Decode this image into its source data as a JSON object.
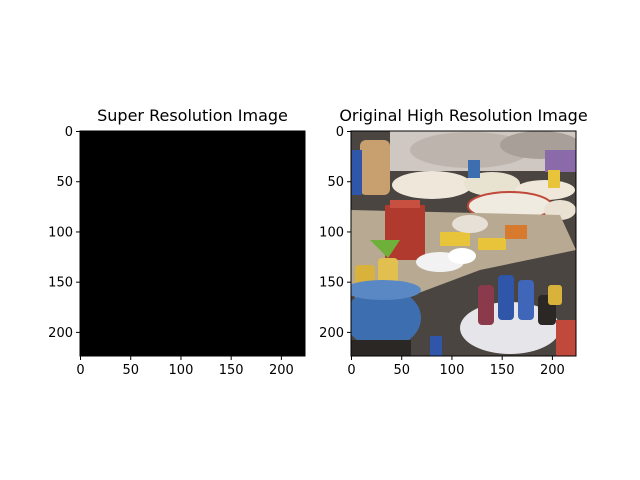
{
  "figure": {
    "background": "#ffffff"
  },
  "chart_data": [
    {
      "type": "image",
      "title": "Super Resolution Image",
      "xlabel": "",
      "ylabel": "",
      "xlim": [
        0,
        224
      ],
      "ylim": [
        224,
        0
      ],
      "xticks": [
        0,
        50,
        100,
        150,
        200
      ],
      "yticks": [
        0,
        50,
        100,
        150,
        200
      ],
      "image_content": "solid black",
      "fill_color": "#000000"
    },
    {
      "type": "image",
      "title": "Original High Resolution Image",
      "xlabel": "",
      "ylabel": "",
      "xlim": [
        0,
        224
      ],
      "ylim": [
        224,
        0
      ],
      "xticks": [
        0,
        50,
        100,
        150,
        200
      ],
      "yticks": [
        0,
        50,
        100,
        150,
        200
      ],
      "image_content": "photo of a market stall with bowls of rice and grains, plastic bottles of oil, a blue basin and a white basin of bottles",
      "palette": {
        "bg_dark": "#4a4540",
        "cloth": "#cfc8c2",
        "rice": "#efe8da",
        "grain": "#e8e2d0",
        "table": "#b8aa92",
        "red_cups": "#b03a2e",
        "yellow": "#e8c43a",
        "green": "#6fb03a",
        "blue_basin": "#3d6fb0",
        "white_basin": "#e6e6ea",
        "bottle_blue": "#2f56a8",
        "oil": "#d8b23a",
        "purple_cloth": "#8a6aa8",
        "orange": "#d87a2e",
        "shadow": "#2b2724",
        "jar": "#c8a070"
      }
    }
  ]
}
